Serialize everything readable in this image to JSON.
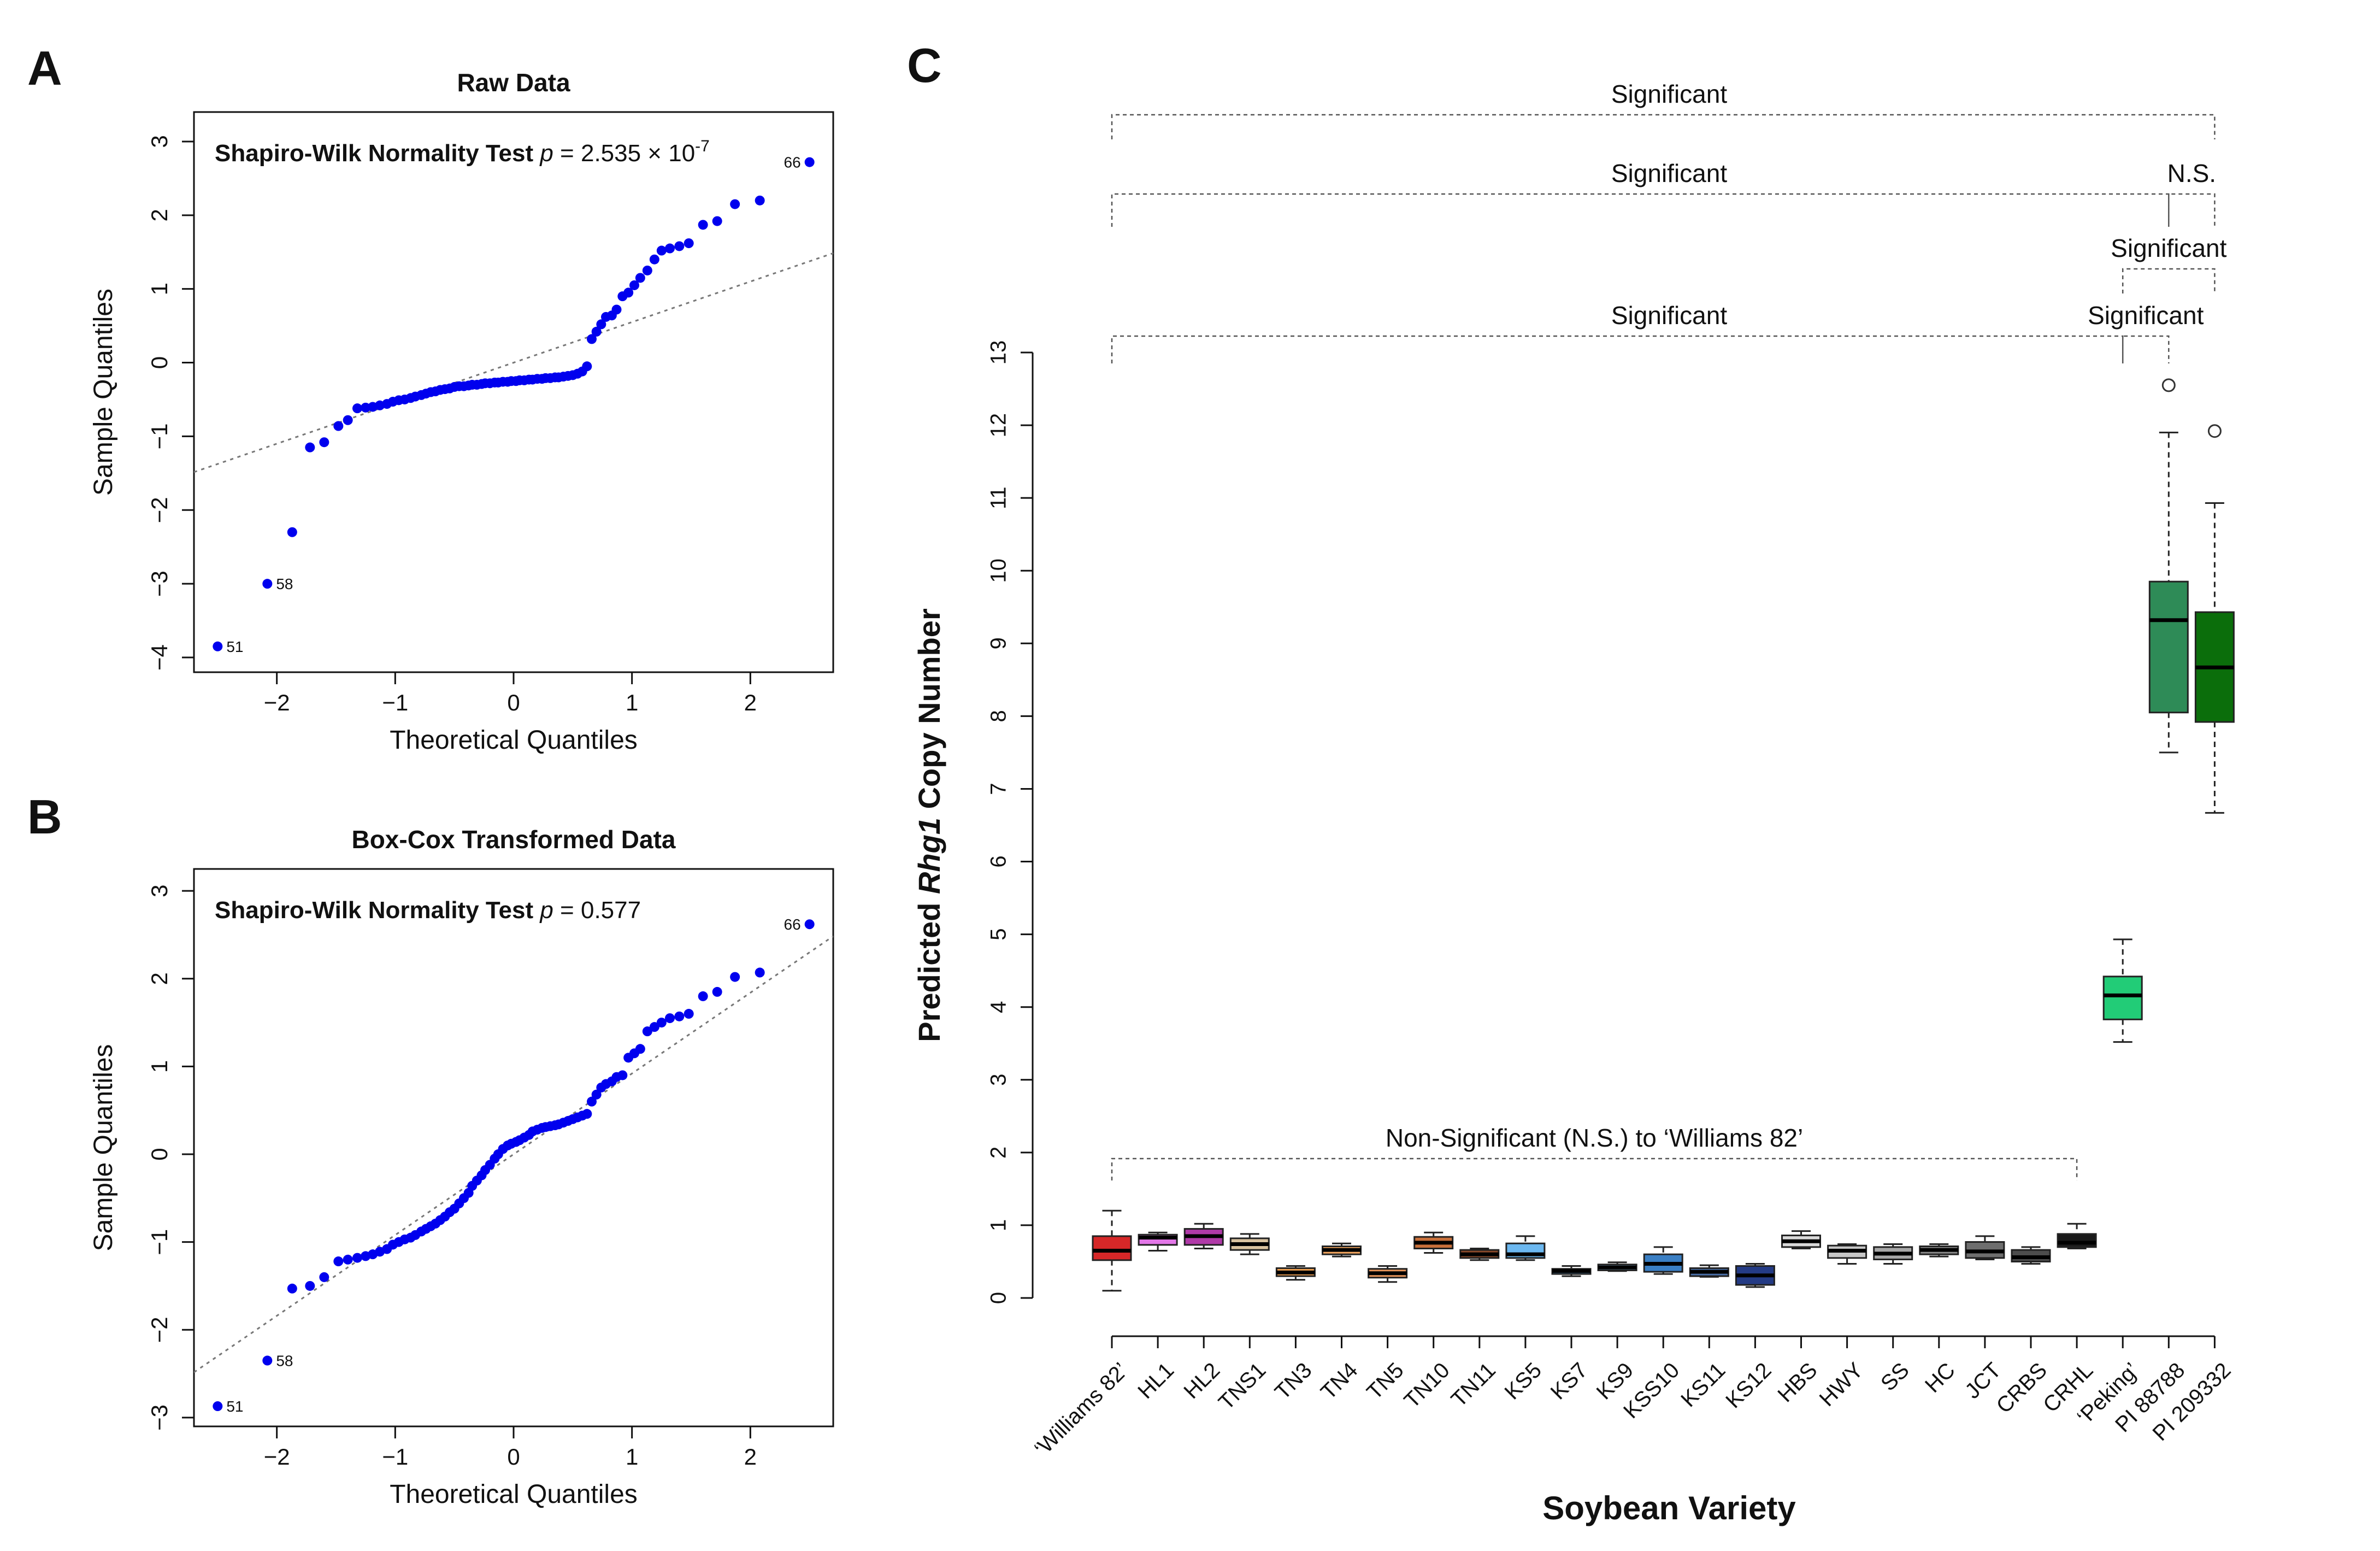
{
  "panels": {
    "A": {
      "letter": "A"
    },
    "B": {
      "letter": "B"
    },
    "C": {
      "letter": "C"
    }
  },
  "chart_data": [
    {
      "id": "A",
      "type": "scatter",
      "title": "Raw Data",
      "xlabel": "Theoretical Quantiles",
      "ylabel": "Sample Quantiles",
      "xlim": [
        -2.7,
        2.7
      ],
      "ylim": [
        -4.2,
        3.4
      ],
      "xticks": [
        -2,
        -1,
        0,
        1,
        2
      ],
      "xtick_labels": [
        "−2",
        "−1",
        "0",
        "1",
        "2"
      ],
      "yticks": [
        -4,
        -3,
        -2,
        -1,
        0,
        1,
        2,
        3
      ],
      "ytick_labels": [
        "−4",
        "−3",
        "−2",
        "−1",
        "0",
        "1",
        "2",
        "3"
      ],
      "test_name": "Shapiro-Wilk Normality Test",
      "p_symbol": "p",
      "p_value": "= 2.535 × 10",
      "p_exponent": "-7",
      "ref_line": {
        "intercept": 0.0,
        "slope": 0.55
      },
      "point_color": "#0000ee",
      "labeled_points": [
        {
          "x": -2.5,
          "y": -3.85,
          "label": "51"
        },
        {
          "x": -2.08,
          "y": -3.0,
          "label": "58"
        },
        {
          "x": 2.5,
          "y": 2.72,
          "label": "66"
        }
      ],
      "points": [
        [
          -2.5,
          -3.85
        ],
        [
          -2.08,
          -3.0
        ],
        [
          -1.87,
          -2.3
        ],
        [
          -1.72,
          -1.15
        ],
        [
          -1.6,
          -1.08
        ],
        [
          -1.48,
          -0.86
        ],
        [
          -1.4,
          -0.78
        ],
        [
          -1.32,
          -0.62
        ],
        [
          -1.25,
          -0.61
        ],
        [
          -1.19,
          -0.6
        ],
        [
          -1.13,
          -0.58
        ],
        [
          -1.07,
          -0.56
        ],
        [
          -1.02,
          -0.53
        ],
        [
          -0.97,
          -0.51
        ],
        [
          -0.92,
          -0.5
        ],
        [
          -0.87,
          -0.48
        ],
        [
          -0.83,
          -0.46
        ],
        [
          -0.78,
          -0.44
        ],
        [
          -0.74,
          -0.42
        ],
        [
          -0.7,
          -0.4
        ],
        [
          -0.66,
          -0.39
        ],
        [
          -0.62,
          -0.37
        ],
        [
          -0.58,
          -0.36
        ],
        [
          -0.54,
          -0.35
        ],
        [
          -0.5,
          -0.33
        ],
        [
          -0.46,
          -0.32
        ],
        [
          -0.42,
          -0.32
        ],
        [
          -0.38,
          -0.31
        ],
        [
          -0.35,
          -0.3
        ],
        [
          -0.31,
          -0.3
        ],
        [
          -0.27,
          -0.29
        ],
        [
          -0.24,
          -0.28
        ],
        [
          -0.2,
          -0.28
        ],
        [
          -0.16,
          -0.27
        ],
        [
          -0.13,
          -0.27
        ],
        [
          -0.09,
          -0.26
        ],
        [
          -0.05,
          -0.26
        ],
        [
          -0.02,
          -0.25
        ],
        [
          0.02,
          -0.25
        ],
        [
          0.05,
          -0.24
        ],
        [
          0.09,
          -0.24
        ],
        [
          0.13,
          -0.23
        ],
        [
          0.16,
          -0.23
        ],
        [
          0.2,
          -0.22
        ],
        [
          0.24,
          -0.22
        ],
        [
          0.27,
          -0.21
        ],
        [
          0.31,
          -0.21
        ],
        [
          0.35,
          -0.2
        ],
        [
          0.38,
          -0.2
        ],
        [
          0.42,
          -0.19
        ],
        [
          0.46,
          -0.18
        ],
        [
          0.5,
          -0.17
        ],
        [
          0.54,
          -0.15
        ],
        [
          0.58,
          -0.12
        ],
        [
          0.62,
          -0.05
        ],
        [
          0.66,
          0.32
        ],
        [
          0.7,
          0.42
        ],
        [
          0.74,
          0.52
        ],
        [
          0.78,
          0.62
        ],
        [
          0.83,
          0.64
        ],
        [
          0.87,
          0.72
        ],
        [
          0.92,
          0.9
        ],
        [
          0.97,
          0.95
        ],
        [
          1.02,
          1.05
        ],
        [
          1.07,
          1.15
        ],
        [
          1.13,
          1.25
        ],
        [
          1.19,
          1.4
        ],
        [
          1.25,
          1.52
        ],
        [
          1.32,
          1.55
        ],
        [
          1.4,
          1.58
        ],
        [
          1.48,
          1.62
        ],
        [
          1.6,
          1.87
        ],
        [
          1.72,
          1.92
        ],
        [
          1.87,
          2.15
        ],
        [
          2.08,
          2.2
        ],
        [
          2.5,
          2.72
        ]
      ]
    },
    {
      "id": "B",
      "type": "scatter",
      "title": "Box-Cox Transformed Data",
      "xlabel": "Theoretical Quantiles",
      "ylabel": "Sample Quantiles",
      "xlim": [
        -2.7,
        2.7
      ],
      "ylim": [
        -3.1,
        3.25
      ],
      "xticks": [
        -2,
        -1,
        0,
        1,
        2
      ],
      "xtick_labels": [
        "−2",
        "−1",
        "0",
        "1",
        "2"
      ],
      "yticks": [
        -3,
        -2,
        -1,
        0,
        1,
        2,
        3
      ],
      "ytick_labels": [
        "−3",
        "−2",
        "−1",
        "0",
        "1",
        "2",
        "3"
      ],
      "test_name": "Shapiro-Wilk Normality Test",
      "p_symbol": "p",
      "p_value": "= 0.577",
      "p_exponent": "",
      "ref_line": {
        "intercept": 0.0,
        "slope": 0.92
      },
      "point_color": "#0000ee",
      "labeled_points": [
        {
          "x": -2.5,
          "y": -2.87,
          "label": "51"
        },
        {
          "x": -2.08,
          "y": -2.35,
          "label": "58"
        },
        {
          "x": 2.5,
          "y": 2.62,
          "label": "66"
        }
      ],
      "points": [
        [
          -2.5,
          -2.87
        ],
        [
          -2.08,
          -2.35
        ],
        [
          -1.87,
          -1.53
        ],
        [
          -1.72,
          -1.5
        ],
        [
          -1.6,
          -1.4
        ],
        [
          -1.48,
          -1.22
        ],
        [
          -1.4,
          -1.2
        ],
        [
          -1.32,
          -1.18
        ],
        [
          -1.25,
          -1.16
        ],
        [
          -1.19,
          -1.14
        ],
        [
          -1.13,
          -1.11
        ],
        [
          -1.07,
          -1.08
        ],
        [
          -1.02,
          -1.03
        ],
        [
          -0.97,
          -1.0
        ],
        [
          -0.92,
          -0.97
        ],
        [
          -0.87,
          -0.95
        ],
        [
          -0.83,
          -0.92
        ],
        [
          -0.78,
          -0.88
        ],
        [
          -0.74,
          -0.85
        ],
        [
          -0.7,
          -0.82
        ],
        [
          -0.66,
          -0.79
        ],
        [
          -0.62,
          -0.75
        ],
        [
          -0.58,
          -0.71
        ],
        [
          -0.54,
          -0.66
        ],
        [
          -0.5,
          -0.62
        ],
        [
          -0.46,
          -0.56
        ],
        [
          -0.42,
          -0.5
        ],
        [
          -0.38,
          -0.44
        ],
        [
          -0.35,
          -0.36
        ],
        [
          -0.31,
          -0.3
        ],
        [
          -0.27,
          -0.24
        ],
        [
          -0.24,
          -0.18
        ],
        [
          -0.2,
          -0.12
        ],
        [
          -0.16,
          -0.05
        ],
        [
          -0.13,
          0.0
        ],
        [
          -0.09,
          0.06
        ],
        [
          -0.05,
          0.1
        ],
        [
          -0.02,
          0.12
        ],
        [
          0.02,
          0.14
        ],
        [
          0.05,
          0.16
        ],
        [
          0.09,
          0.19
        ],
        [
          0.13,
          0.22
        ],
        [
          0.16,
          0.26
        ],
        [
          0.2,
          0.28
        ],
        [
          0.24,
          0.3
        ],
        [
          0.27,
          0.31
        ],
        [
          0.31,
          0.32
        ],
        [
          0.35,
          0.33
        ],
        [
          0.38,
          0.34
        ],
        [
          0.42,
          0.36
        ],
        [
          0.46,
          0.38
        ],
        [
          0.5,
          0.4
        ],
        [
          0.54,
          0.42
        ],
        [
          0.58,
          0.44
        ],
        [
          0.62,
          0.46
        ],
        [
          0.66,
          0.6
        ],
        [
          0.7,
          0.68
        ],
        [
          0.74,
          0.76
        ],
        [
          0.78,
          0.8
        ],
        [
          0.83,
          0.83
        ],
        [
          0.87,
          0.88
        ],
        [
          0.92,
          0.9
        ],
        [
          0.97,
          1.1
        ],
        [
          1.02,
          1.15
        ],
        [
          1.07,
          1.2
        ],
        [
          1.13,
          1.4
        ],
        [
          1.19,
          1.45
        ],
        [
          1.25,
          1.5
        ],
        [
          1.32,
          1.55
        ],
        [
          1.4,
          1.57
        ],
        [
          1.48,
          1.6
        ],
        [
          1.6,
          1.8
        ],
        [
          1.72,
          1.85
        ],
        [
          1.87,
          2.02
        ],
        [
          2.08,
          2.07
        ],
        [
          2.5,
          2.62
        ]
      ]
    },
    {
      "id": "C",
      "type": "box",
      "xlabel": "Soybean Variety",
      "ylabel_prefix": "Predicted ",
      "ylabel_italic": "Rhg1",
      "ylabel_suffix": " Copy Number",
      "ylim": [
        0,
        13
      ],
      "yticks": [
        0,
        1,
        2,
        3,
        4,
        5,
        6,
        7,
        8,
        9,
        10,
        11,
        12,
        13
      ],
      "categories": [
        "‘Williams 82’",
        "HL1",
        "HL2",
        "TNS1",
        "TN3",
        "TN4",
        "TN5",
        "TN10",
        "TN11",
        "KS5",
        "KS7",
        "KS9",
        "KSS10",
        "KS11",
        "KS12",
        "HBS",
        "HWY",
        "SS",
        "HC",
        "JCT",
        "CRBS",
        "CRHL",
        "‘Peking’",
        "PI 88788",
        "PI 209332"
      ],
      "boxes": [
        {
          "min": 0.1,
          "q1": 0.52,
          "median": 0.65,
          "q3": 0.85,
          "max": 1.2,
          "color": "#d62728"
        },
        {
          "min": 0.65,
          "q1": 0.73,
          "median": 0.83,
          "q3": 0.87,
          "max": 0.9,
          "color": "#e377e8"
        },
        {
          "min": 0.68,
          "q1": 0.73,
          "median": 0.85,
          "q3": 0.95,
          "max": 1.02,
          "color": "#b03aa8"
        },
        {
          "min": 0.6,
          "q1": 0.66,
          "median": 0.74,
          "q3": 0.82,
          "max": 0.88,
          "color": "#d9c3a0"
        },
        {
          "min": 0.25,
          "q1": 0.3,
          "median": 0.35,
          "q3": 0.41,
          "max": 0.44,
          "color": "#f0a050"
        },
        {
          "min": 0.57,
          "q1": 0.6,
          "median": 0.66,
          "q3": 0.71,
          "max": 0.75,
          "color": "#f5a861"
        },
        {
          "min": 0.22,
          "q1": 0.28,
          "median": 0.34,
          "q3": 0.4,
          "max": 0.44,
          "color": "#e8955a"
        },
        {
          "min": 0.62,
          "q1": 0.68,
          "median": 0.76,
          "q3": 0.84,
          "max": 0.9,
          "color": "#c8703a"
        },
        {
          "min": 0.52,
          "q1": 0.55,
          "median": 0.6,
          "q3": 0.66,
          "max": 0.68,
          "color": "#8b4a2b"
        },
        {
          "min": 0.52,
          "q1": 0.55,
          "median": 0.6,
          "q3": 0.75,
          "max": 0.85,
          "color": "#6cb8f0"
        },
        {
          "min": 0.3,
          "q1": 0.33,
          "median": 0.37,
          "q3": 0.4,
          "max": 0.44,
          "color": "#4f9fdd"
        },
        {
          "min": 0.37,
          "q1": 0.38,
          "median": 0.42,
          "q3": 0.46,
          "max": 0.49,
          "color": "#7fb2d6"
        },
        {
          "min": 0.33,
          "q1": 0.36,
          "median": 0.47,
          "q3": 0.6,
          "max": 0.7,
          "color": "#3a7fc4"
        },
        {
          "min": 0.29,
          "q1": 0.3,
          "median": 0.36,
          "q3": 0.41,
          "max": 0.45,
          "color": "#4a6fa8"
        },
        {
          "min": 0.15,
          "q1": 0.18,
          "median": 0.31,
          "q3": 0.44,
          "max": 0.47,
          "color": "#243b85"
        },
        {
          "min": 0.68,
          "q1": 0.7,
          "median": 0.78,
          "q3": 0.86,
          "max": 0.92,
          "color": "#d9d9d9"
        },
        {
          "min": 0.47,
          "q1": 0.55,
          "median": 0.65,
          "q3": 0.72,
          "max": 0.74,
          "color": "#c6c6c6"
        },
        {
          "min": 0.47,
          "q1": 0.53,
          "median": 0.61,
          "q3": 0.7,
          "max": 0.74,
          "color": "#a8a8a8"
        },
        {
          "min": 0.57,
          "q1": 0.6,
          "median": 0.66,
          "q3": 0.71,
          "max": 0.74,
          "color": "#8a8a8a"
        },
        {
          "min": 0.53,
          "q1": 0.55,
          "median": 0.64,
          "q3": 0.77,
          "max": 0.85,
          "color": "#6e6e6e"
        },
        {
          "min": 0.47,
          "q1": 0.5,
          "median": 0.56,
          "q3": 0.66,
          "max": 0.7,
          "color": "#4d4d4d"
        },
        {
          "min": 0.68,
          "q1": 0.7,
          "median": 0.76,
          "q3": 0.88,
          "max": 1.02,
          "color": "#1a1a1a"
        },
        {
          "min": 3.52,
          "q1": 3.83,
          "median": 4.16,
          "q3": 4.42,
          "max": 4.93,
          "color": "#22cc77"
        },
        {
          "min": 7.5,
          "q1": 8.05,
          "median": 9.32,
          "q3": 9.85,
          "max": 11.9,
          "color": "#2e8b57",
          "outliers": [
            12.55
          ]
        },
        {
          "min": 6.67,
          "q1": 7.92,
          "median": 8.67,
          "q3": 9.43,
          "max": 10.93,
          "color": "#0b6e0b",
          "outliers": [
            11.92
          ]
        }
      ],
      "significance": [
        {
          "label": "Significant",
          "from": 0,
          "to": 24,
          "level": 1
        },
        {
          "label": "Significant",
          "from": 0,
          "to": 23,
          "level": 2
        },
        {
          "label": "N.S.",
          "from": 23,
          "to": 24,
          "level": 2
        },
        {
          "label": "Significant",
          "from": 22,
          "to": 24,
          "level": 3
        },
        {
          "label": "Significant",
          "from": 0,
          "to": 22,
          "level": 4
        },
        {
          "label": "Significant",
          "from": 22,
          "to": 23,
          "level": 4
        },
        {
          "label": "Non-Significant (N.S.) to ‘Williams 82’",
          "from": 0,
          "to": 21,
          "level": 5
        }
      ]
    }
  ]
}
